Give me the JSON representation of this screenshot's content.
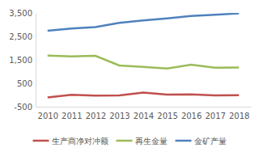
{
  "chart_data": {
    "type": "line",
    "categories": [
      "2010",
      "2011",
      "2012",
      "2013",
      "2014",
      "2015",
      "2016",
      "2017",
      "2018"
    ],
    "series": [
      {
        "name": "生产商净对冲额",
        "color": "#c0504d",
        "values": [
          -100,
          10,
          -30,
          -20,
          100,
          20,
          30,
          -20,
          -10
        ]
      },
      {
        "name": "再生金量",
        "color": "#9bbb59",
        "values": [
          1680,
          1650,
          1670,
          1260,
          1200,
          1130,
          1290,
          1160,
          1170
        ]
      },
      {
        "name": "金矿产量",
        "color": "#4f81bd",
        "values": [
          2740,
          2840,
          2900,
          3080,
          3180,
          3270,
          3370,
          3420,
          3480
        ]
      }
    ],
    "ylim": [
      -500,
      3500
    ],
    "yticks": [
      -500,
      500,
      {
        "value": 1500,
        "label": "1,500"
      },
      {
        "value": 2500,
        "label": "2,500"
      },
      {
        "value": 3500,
        "label": "3,500"
      }
    ],
    "grid": false,
    "legend": "bottom"
  }
}
